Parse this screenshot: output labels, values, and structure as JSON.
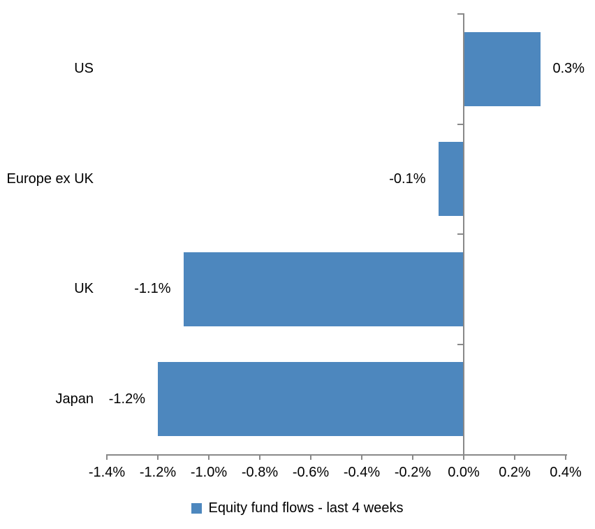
{
  "chart_data": {
    "type": "bar",
    "orientation": "horizontal",
    "title": "",
    "categories": [
      "US",
      "Europe ex UK",
      "UK",
      "Japan"
    ],
    "values": [
      0.3,
      -0.1,
      -1.1,
      -1.2
    ],
    "value_labels": [
      "0.3%",
      "-0.1%",
      "-1.1%",
      "-1.2%"
    ],
    "series_name": "Equity fund flows - last 4 weeks",
    "unit": "%",
    "x_ticks": [
      -1.4,
      -1.2,
      -1.0,
      -0.8,
      -0.6,
      -0.4,
      -0.2,
      0.0,
      0.2,
      0.4
    ],
    "x_tick_labels": [
      "-1.4%",
      "-1.2%",
      "-1.0%",
      "-0.8%",
      "-0.6%",
      "-0.4%",
      "-0.2%",
      "0.0%",
      "0.2%",
      "0.4%"
    ],
    "xlim": [
      -1.4,
      0.4
    ],
    "grid": false,
    "legend_position": "bottom",
    "bar_color": "#4D87BE",
    "axis_color": "#898989",
    "text_color": "#000000",
    "background_color": "#FFFFFF"
  }
}
